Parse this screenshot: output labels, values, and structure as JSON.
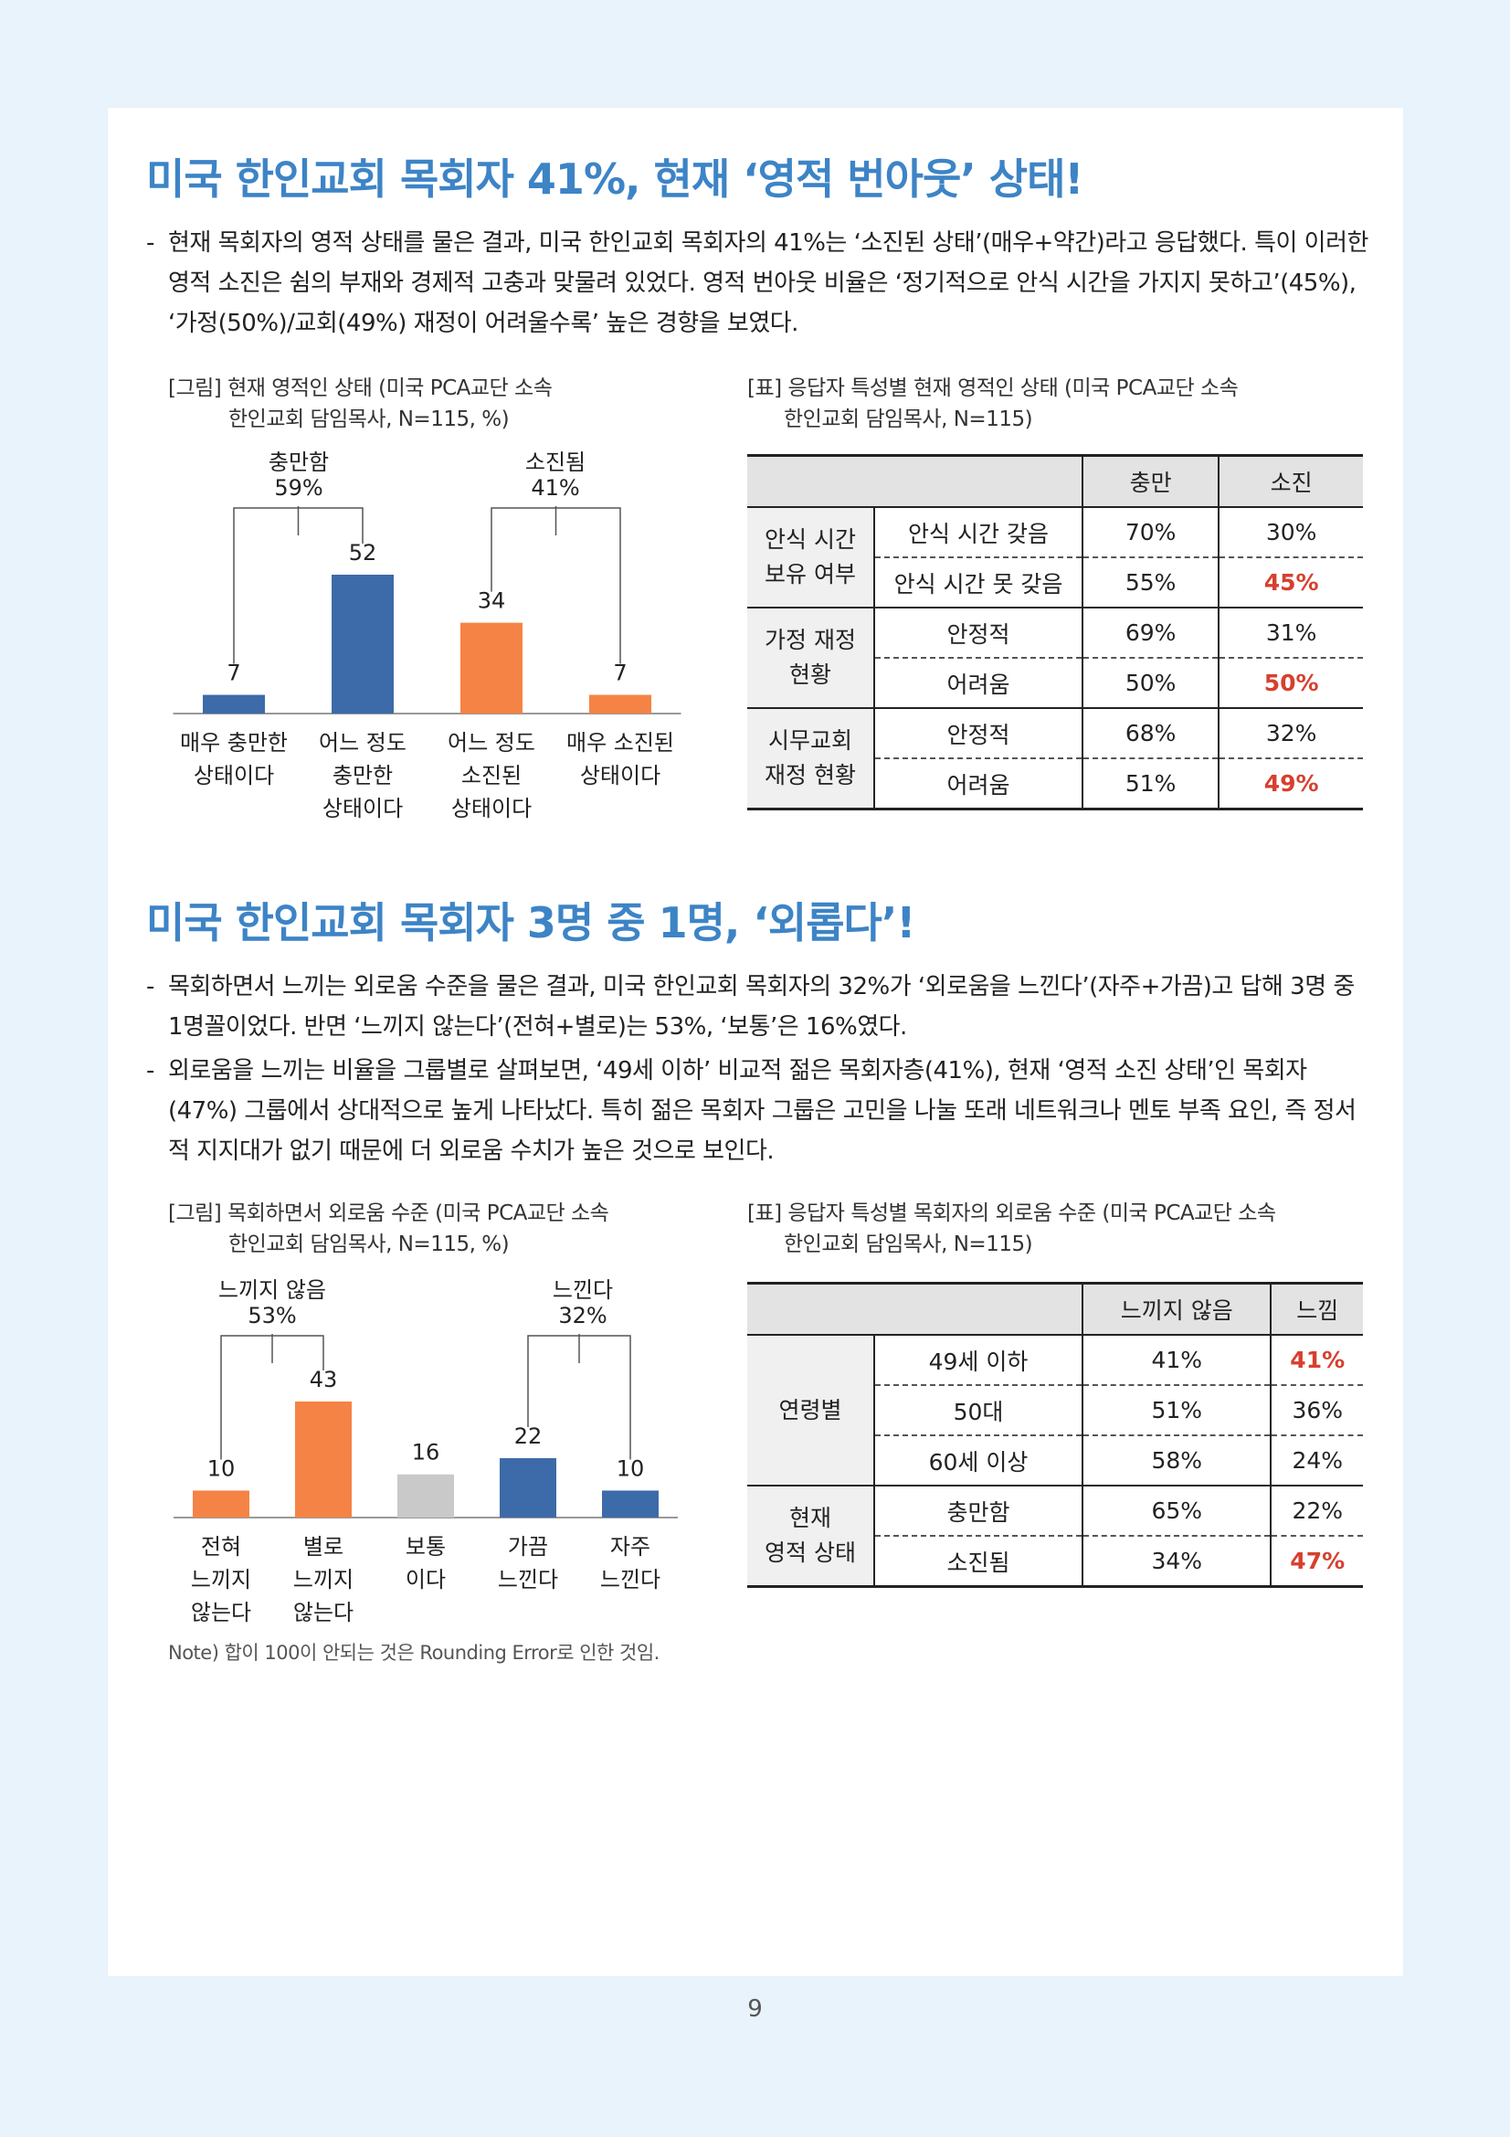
{
  "section1": {
    "title": "미국 한인교회 목회자 41%, 현재 ‘영적 번아웃’ 상태!",
    "bullets": [
      "현재 목회자의 영적 상태를 물은 결과, 미국 한인교회 목회자의 41%는 ‘소진된 상태’(매우+약간)라고 응답했다. 특이 이러한 영적 소진은 쉼의 부재와 경제적 고충과 맞물려 있었다. 영적 번아웃 비율은 ‘정기적으로 안식 시간을 가지지 못하고’(45%), ‘가정(50%)/교회(49%) 재정이 어려울수록’ 높은 경향을 보였다."
    ],
    "figure_caption_1": "[그림] 현재 영적인 상태 (미국 PCA교단 소속",
    "figure_caption_2": "한인교회 담임목사, N=115, %)",
    "table_caption_1": "[표] 응답자 특성별 현재 영적인 상태 (미국 PCA교단 소속",
    "table_caption_2": "한인교회 담임목사, N=115)",
    "chart_data": {
      "type": "bar",
      "categories": [
        "매우 충만한 상태이다",
        "어느 정도 충만한 상태이다",
        "어느 정도 소진된 상태이다",
        "매우 소진된 상태이다"
      ],
      "category_lines": [
        [
          "매우 충만한",
          "상태이다"
        ],
        [
          "어느 정도",
          "충만한",
          "상태이다"
        ],
        [
          "어느 정도",
          "소진된",
          "상태이다"
        ],
        [
          "매우 소진된",
          "상태이다"
        ]
      ],
      "values": [
        7,
        52,
        34,
        7
      ],
      "colors": [
        "#3d6aa8",
        "#3d6aa8",
        "#f58345",
        "#f58345"
      ],
      "groups": [
        {
          "label": "충만함",
          "value": "59%"
        },
        {
          "label": "소진됨",
          "value": "41%"
        }
      ]
    },
    "table": {
      "headers": [
        "충만",
        "소진"
      ],
      "groups": [
        {
          "label_lines": [
            "안식 시간",
            "보유 여부"
          ],
          "rows": [
            {
              "label": "안식 시간 갖음",
              "v1": "70%",
              "v2": "30%",
              "red": false
            },
            {
              "label": "안식 시간 못 갖음",
              "v1": "55%",
              "v2": "45%",
              "red": true
            }
          ]
        },
        {
          "label_lines": [
            "가정 재정",
            "현황"
          ],
          "rows": [
            {
              "label": "안정적",
              "v1": "69%",
              "v2": "31%",
              "red": false
            },
            {
              "label": "어려움",
              "v1": "50%",
              "v2": "50%",
              "red": true
            }
          ]
        },
        {
          "label_lines": [
            "시무교회",
            "재정 현황"
          ],
          "rows": [
            {
              "label": "안정적",
              "v1": "68%",
              "v2": "32%",
              "red": false
            },
            {
              "label": "어려움",
              "v1": "51%",
              "v2": "49%",
              "red": true
            }
          ]
        }
      ]
    }
  },
  "section2": {
    "title": "미국 한인교회 목회자 3명 중 1명, ‘외롭다’!",
    "bullets": [
      "목회하면서 느끼는 외로움 수준을 물은 결과, 미국 한인교회 목회자의 32%가 ‘외로움을 느낀다’(자주+가끔)고 답해 3명 중 1명꼴이었다. 반면 ‘느끼지 않는다’(전혀+별로)는 53%, ‘보통’은 16%였다.",
      "외로움을 느끼는 비율을 그룹별로 살펴보면, ‘49세 이하’ 비교적 젊은 목회자층(41%), 현재 ‘영적 소진 상태’인 목회자(47%) 그룹에서 상대적으로 높게 나타났다. 특히 젊은 목회자 그룹은 고민을 나눌 또래 네트워크나 멘토 부족 요인, 즉 정서적 지지대가 없기 때문에 더 외로움 수치가 높은 것으로 보인다."
    ],
    "figure_caption_1": "[그림] 목회하면서 외로움 수준 (미국 PCA교단 소속",
    "figure_caption_2": "한인교회 담임목사, N=115, %)",
    "table_caption_1": "[표] 응답자 특성별 목회자의 외로움 수준 (미국 PCA교단 소속",
    "table_caption_2": "한인교회 담임목사, N=115)",
    "note": "Note) 합이 100이 안되는 것은 Rounding Error로 인한 것임.",
    "chart_data": {
      "type": "bar",
      "categories": [
        "전혀 느끼지 않는다",
        "별로 느끼지 않는다",
        "보통이다",
        "가끔 느낀다",
        "자주 느낀다"
      ],
      "category_lines": [
        [
          "전혀",
          "느끼지",
          "않는다"
        ],
        [
          "별로",
          "느끼지",
          "않는다"
        ],
        [
          "보통",
          "이다"
        ],
        [
          "가끔",
          "느낀다"
        ],
        [
          "자주",
          "느낀다"
        ]
      ],
      "values": [
        10,
        43,
        16,
        22,
        10
      ],
      "colors": [
        "#f58345",
        "#f58345",
        "#c9c9c9",
        "#3d6aa8",
        "#3d6aa8"
      ],
      "groups": [
        {
          "label": "느끼지 않음",
          "value": "53%"
        },
        {
          "label": "느낀다",
          "value": "32%"
        }
      ]
    },
    "table": {
      "headers": [
        "느끼지 않음",
        "느낌"
      ],
      "groups": [
        {
          "label_lines": [
            "연령별"
          ],
          "rows": [
            {
              "label": "49세 이하",
              "v1": "41%",
              "v2": "41%",
              "red": true
            },
            {
              "label": "50대",
              "v1": "51%",
              "v2": "36%",
              "red": false
            },
            {
              "label": "60세 이상",
              "v1": "58%",
              "v2": "24%",
              "red": false
            }
          ]
        },
        {
          "label_lines": [
            "현재",
            "영적 상태"
          ],
          "rows": [
            {
              "label": "충만함",
              "v1": "65%",
              "v2": "22%",
              "red": false
            },
            {
              "label": "소진됨",
              "v1": "34%",
              "v2": "47%",
              "red": true
            }
          ]
        }
      ]
    }
  },
  "page_number": "9"
}
